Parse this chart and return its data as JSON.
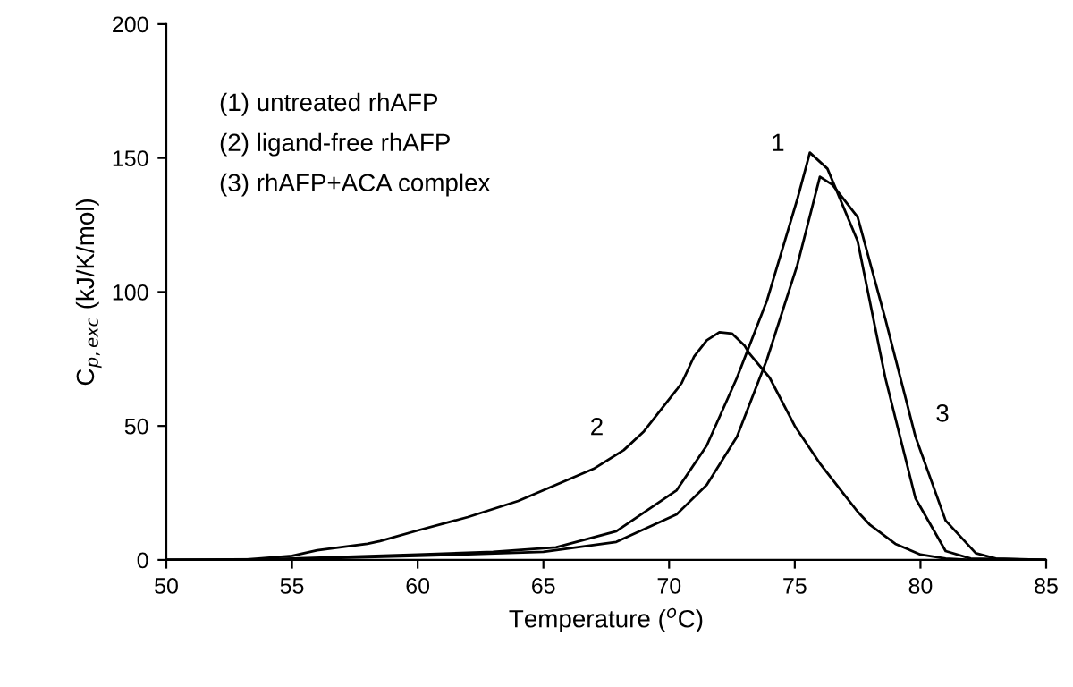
{
  "chart_data": {
    "type": "line",
    "xlabel": "Temperature ($^{o}$C)",
    "ylabel": "C$_{p,exc}$ (kJ/K/mol)",
    "xlim": [
      50,
      85
    ],
    "xticks": [
      50,
      55,
      60,
      65,
      70,
      75,
      80,
      85
    ],
    "ylim": [
      0,
      200
    ],
    "yticks": [
      0,
      50,
      100,
      150,
      200
    ],
    "grid": false,
    "legend": false,
    "series": [
      {
        "name": "1",
        "color": "#000000",
        "x": [
          50,
          53,
          55,
          60,
          63,
          65.5,
          67.9,
          70.3,
          71.5,
          72.7,
          73.9,
          75.1,
          75.6,
          76.3,
          77.5,
          78.6,
          79.8,
          81,
          82,
          85
        ],
        "values": [
          0,
          0,
          0.5,
          2,
          3,
          4.7,
          10.7,
          26,
          42.7,
          68,
          97,
          134.6,
          152,
          146,
          119,
          68,
          23,
          3.3,
          0.5,
          0
        ]
      },
      {
        "name": "2",
        "color": "#000000",
        "x": [
          50,
          53,
          55,
          56,
          58,
          58.5,
          60,
          62,
          64,
          65.5,
          67,
          68.2,
          69,
          70.3,
          70.5,
          71,
          71.5,
          72,
          72.5,
          73,
          73.2,
          74,
          75,
          76,
          77,
          77.5,
          78,
          79,
          80,
          81,
          82,
          85
        ],
        "values": [
          0,
          0,
          1.5,
          3.6,
          6,
          7,
          11,
          16,
          22,
          28,
          34,
          41,
          48,
          63.5,
          66,
          76,
          82,
          85,
          84.5,
          80,
          77,
          68,
          50,
          36,
          24,
          18,
          13,
          6,
          2,
          0.5,
          0,
          0
        ]
      },
      {
        "name": "3",
        "color": "#000000",
        "x": [
          50,
          55,
          60,
          65,
          67.9,
          70.3,
          71.5,
          72.7,
          73.9,
          75.1,
          76,
          76.5,
          77.5,
          78.6,
          79.8,
          81,
          82.2,
          83,
          85
        ],
        "values": [
          0,
          0.3,
          1.5,
          3,
          6.7,
          17,
          28,
          46,
          75,
          110,
          143,
          140,
          128,
          90,
          46,
          14.7,
          2.5,
          0.5,
          0
        ]
      }
    ],
    "annotations": [
      "(1) untreated rhAFP",
      "(2) ligand-free rhAFP",
      "(3) rhAFP+ACA complex"
    ]
  }
}
